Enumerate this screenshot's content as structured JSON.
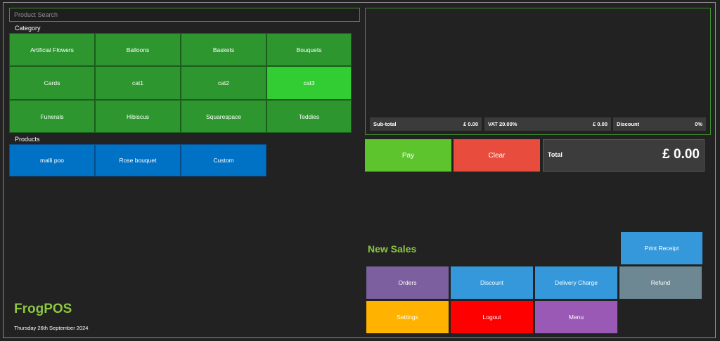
{
  "search": {
    "placeholder": "Product Search"
  },
  "category": {
    "heading": "Category",
    "items": [
      "Artificial Flowers",
      "Balloons",
      "Baskets",
      "Bouquets",
      "Cards",
      "cat1",
      "cat2",
      "cat3",
      "Funerals",
      "Hibiscus",
      "Squarespace",
      "Teddies"
    ],
    "active": "cat3"
  },
  "products": {
    "heading": "Products",
    "items": [
      "malli poo",
      "Rose bouquet",
      "Custom"
    ]
  },
  "summary": {
    "subtotal_label": "Sub-total",
    "subtotal_value": "£ 0.00",
    "vat_label": "VAT 20.00%",
    "vat_value": "£ 0.00",
    "discount_label": "Discount",
    "discount_value": "0%"
  },
  "actions": {
    "pay": "Pay",
    "clear": "Clear",
    "total_label": "Total",
    "total_value": "£ 0.00"
  },
  "panel": {
    "title": "New Sales",
    "print_receipt": "Print Receipt",
    "orders": "Orders",
    "discount": "Discount",
    "delivery_charge": "Delivery Charge",
    "refund": "Refund",
    "settings": "Settings",
    "logout": "Logout",
    "menu": "Menu"
  },
  "footer": {
    "brand": "FrogPOS",
    "date": "Thursday 26th September 2024"
  },
  "colors": {
    "background": "#222222",
    "category_tile": "#2d962f",
    "category_active": "#32cd32",
    "product_tile": "#0072c6",
    "pay": "#5ec42e",
    "clear": "#e74c3c",
    "brand_green": "#8cc63f",
    "print_receipt": "#3498db",
    "orders": "#7b5f9e",
    "discount": "#3498db",
    "delivery_charge": "#3498db",
    "refund": "#6d8793",
    "settings": "#ffb300",
    "logout": "#ff0000",
    "menu": "#9b59b6"
  }
}
